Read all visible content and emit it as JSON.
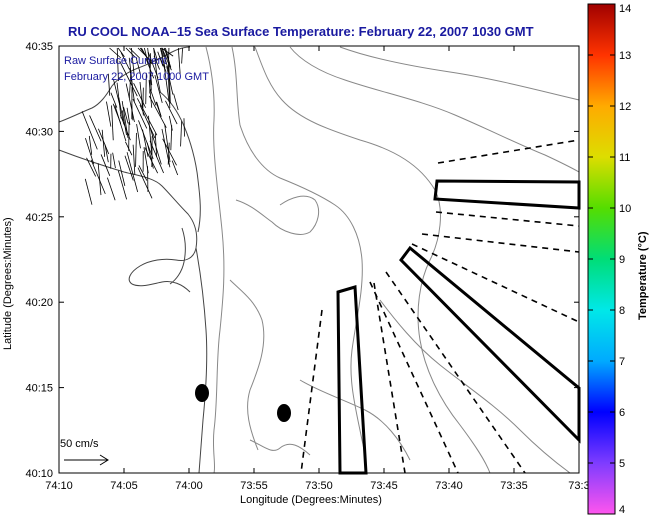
{
  "title": "RU COOL  NOAA–15  Sea Surface Temperature:  February 22, 2007 1030 GMT",
  "overlay": {
    "line1": "Raw Surface Current",
    "line2": "February 22, 2007 1000 GMT"
  },
  "scale_label": "50 cm/s",
  "x_axis": {
    "label": "Longitude (Degrees:Minutes)",
    "ticks": [
      "74:10",
      "74:05",
      "74:00",
      "73:55",
      "73:50",
      "73:45",
      "73:40",
      "73:35",
      "73:3"
    ]
  },
  "y_axis": {
    "label": "Latitude (Degrees:Minutes)",
    "ticks": [
      "40:35",
      "40:30",
      "40:25",
      "40:20",
      "40:15",
      "40:10"
    ]
  },
  "colorbar": {
    "label": "Temperature (°C)",
    "ticks": [
      "14",
      "13",
      "12",
      "11",
      "10",
      "9",
      "8",
      "7",
      "6",
      "5",
      "4"
    ],
    "min": 4,
    "max": 14,
    "stops": [
      "#ff55ee",
      "#7e3cff",
      "#0000ff",
      "#00aaff",
      "#00e8e8",
      "#00dd77",
      "#55dd00",
      "#dddd00",
      "#ffaa00",
      "#ff3300",
      "#a00000"
    ]
  }
}
